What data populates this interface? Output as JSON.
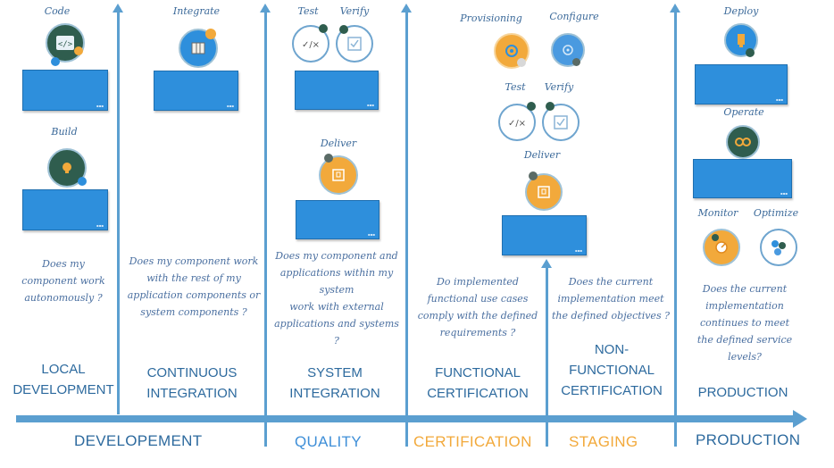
{
  "columns": [
    {
      "stage": [
        "LOCAL",
        "DEVELOPMENT"
      ],
      "question": [
        "Does my",
        "component work",
        "autonomously ?"
      ],
      "activities": [
        "Code",
        "Build"
      ]
    },
    {
      "stage": [
        "CONTINUOUS",
        "INTEGRATION"
      ],
      "question": [
        "Does my component work",
        "with the rest of my",
        "application components or",
        "system components ?"
      ],
      "activities": [
        "Integrate"
      ]
    },
    {
      "stage": [
        "SYSTEM",
        "INTEGRATION"
      ],
      "question": [
        "Does my component and",
        "applications within my",
        "system",
        "work with external",
        "applications and systems",
        "?"
      ],
      "activities": [
        "Test",
        "Verify",
        "Deliver"
      ]
    },
    {
      "stage": [
        "FUNCTIONAL",
        "CERTIFICATION"
      ],
      "question": [
        "Do implemented",
        "functional use cases",
        "comply  with the defined",
        "requirements ?"
      ],
      "activities": [
        "Provisioning",
        "Configure",
        "Test",
        "Verify",
        "Deliver"
      ]
    },
    {
      "stage": [
        "NON-",
        "FUNCTIONAL",
        "CERTIFICATION"
      ],
      "question": [
        "Does the current",
        "implementation meet",
        "the defined objectives ?"
      ],
      "activities": []
    },
    {
      "stage": [
        "PRODUCTION"
      ],
      "question": [
        "Does the current",
        "implementation",
        "continues to meet",
        "the defined service",
        "levels?"
      ],
      "activities": [
        "Deploy",
        "Operate",
        "Monitor",
        "Optimize"
      ]
    }
  ],
  "phases": [
    {
      "label": "DEVELOPEMENT",
      "color": "#2d6a9e"
    },
    {
      "label": "QUALITY",
      "color": "#3f8fd8"
    },
    {
      "label": "CERTIFICATION",
      "color": "#f2a93b"
    },
    {
      "label": "STAGING",
      "color": "#f2a93b"
    },
    {
      "label": "PRODUCTION",
      "color": "#2d6a9e"
    }
  ],
  "colors": {
    "box": "#2e8fdc",
    "axis": "#5b9fd0",
    "stage_text": "#2d6a9e",
    "hand_text": "#3c6a9a",
    "orange": "#f2a93b",
    "dark_green": "#2f5d4e"
  },
  "icons": [
    "code-icon",
    "build-icon",
    "integrate-icon",
    "test-icon",
    "verify-icon",
    "deliver-icon",
    "provisioning-icon",
    "configure-icon",
    "deploy-icon",
    "operate-icon",
    "monitor-icon",
    "optimize-icon"
  ]
}
